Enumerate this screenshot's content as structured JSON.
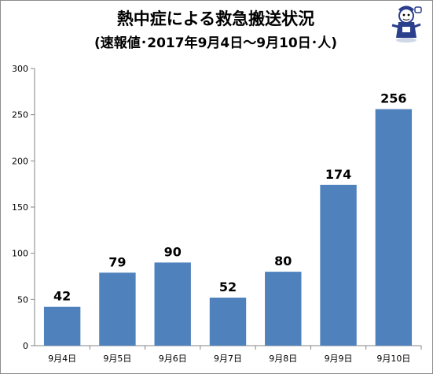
{
  "chart_data": {
    "type": "bar",
    "title": "熱中症による救急搬送状況",
    "subtitle": "(速報値･2017年9月4日～9月10日･人)",
    "categories": [
      "9月4日",
      "9月5日",
      "9月6日",
      "9月7日",
      "9月8日",
      "9月9日",
      "9月10日"
    ],
    "values": [
      42,
      79,
      90,
      52,
      80,
      174,
      256
    ],
    "data_labels": [
      "42",
      "79",
      "90",
      "52",
      "80",
      "174",
      "256"
    ],
    "ylim": [
      0,
      300
    ],
    "yticks": [
      0,
      50,
      100,
      150,
      200,
      250,
      300
    ],
    "ytick_labels": [
      "0",
      "50",
      "100",
      "150",
      "200",
      "250",
      "300"
    ],
    "grid": false,
    "legend": "none",
    "bar_color": "#4f81bd"
  },
  "mascot_icon": "mascot-character-icon"
}
